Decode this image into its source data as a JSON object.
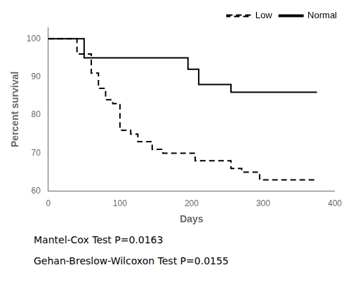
{
  "chart_data": {
    "type": "step",
    "xlabel": "Days",
    "ylabel": "Percent survival",
    "xlim": [
      0,
      400
    ],
    "ylim": [
      60,
      103
    ],
    "xticks": [
      0,
      100,
      200,
      300,
      400
    ],
    "yticks": [
      60,
      70,
      80,
      90,
      100
    ],
    "grid": false,
    "legend": "upper right",
    "series": [
      {
        "name": "Low",
        "color": "#000000",
        "line_style": "dashed",
        "x": [
          0,
          40,
          40,
          60,
          60,
          70,
          70,
          80,
          80,
          90,
          90,
          100,
          100,
          115,
          115,
          125,
          125,
          145,
          145,
          160,
          160,
          185,
          185,
          205,
          205,
          225,
          225,
          255,
          255,
          270,
          270,
          295,
          295,
          315,
          315,
          350,
          350,
          375
        ],
        "values": [
          100,
          100,
          96,
          96,
          91,
          91,
          87,
          87,
          84,
          84,
          83,
          83,
          76,
          76,
          75,
          75,
          73,
          73,
          71,
          71,
          70,
          70,
          70,
          70,
          68,
          68,
          68,
          68,
          66,
          66,
          65,
          65,
          63,
          63,
          63,
          63,
          63,
          63
        ]
      },
      {
        "name": "Normal",
        "color": "#000000",
        "line_style": "solid",
        "x": [
          0,
          50,
          50,
          195,
          195,
          210,
          210,
          255,
          255,
          270,
          270,
          375
        ],
        "values": [
          100,
          100,
          95,
          95,
          92,
          92,
          88,
          88,
          86,
          86,
          86,
          86
        ]
      }
    ],
    "annotations": [
      "Mantel-Cox Test  P=0.0163",
      "Gehan-Breslow-Wilcoxon Test  P=0.0155"
    ]
  }
}
